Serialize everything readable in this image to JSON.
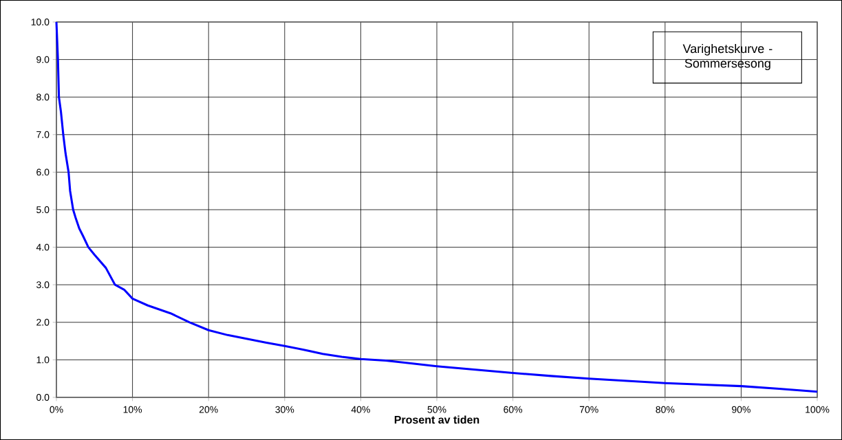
{
  "chart_data": {
    "type": "line",
    "title": "Varighetskurve - Sommersesong",
    "xlabel": "Prosent av tiden",
    "x": [
      0,
      0.2,
      0.33,
      0.6,
      0.9,
      1.2,
      1.6,
      1.8,
      2.2,
      2.5,
      3,
      3.5,
      4.2,
      5,
      6.5,
      7.7,
      8.9,
      10,
      12,
      15,
      17.5,
      20,
      22.5,
      25,
      27.5,
      30,
      32.5,
      35,
      37.5,
      40,
      43.3,
      46,
      50,
      55,
      60,
      65,
      70,
      75,
      80,
      85,
      90,
      95,
      100
    ],
    "series": [
      {
        "color": "#0000ff",
        "line_style": "solid",
        "values": [
          10.0,
          9.0,
          8.0,
          7.6,
          7.0,
          6.5,
          6.0,
          5.5,
          5.0,
          4.8,
          4.5,
          4.3,
          4.0,
          3.8,
          3.45,
          3.0,
          2.87,
          2.63,
          2.45,
          2.24,
          2.0,
          1.79,
          1.66,
          1.56,
          1.46,
          1.37,
          1.27,
          1.16,
          1.08,
          1.02,
          0.98,
          0.92,
          0.83,
          0.74,
          0.65,
          0.57,
          0.5,
          0.44,
          0.38,
          0.34,
          0.3,
          0.23,
          0.15
        ]
      }
    ],
    "xlim": [
      0,
      100
    ],
    "ylim": [
      0,
      10
    ],
    "xticks": [
      {
        "value": 0,
        "label": "0%"
      },
      {
        "value": 10,
        "label": "10%"
      },
      {
        "value": 20,
        "label": "20%"
      },
      {
        "value": 30,
        "label": "30%"
      },
      {
        "value": 40,
        "label": "40%"
      },
      {
        "value": 50,
        "label": "50%"
      },
      {
        "value": 60,
        "label": "60%"
      },
      {
        "value": 70,
        "label": "70%"
      },
      {
        "value": 80,
        "label": "80%"
      },
      {
        "value": 90,
        "label": "90%"
      },
      {
        "value": 100,
        "label": "100%"
      }
    ],
    "yticks": [
      {
        "value": 0,
        "label": "0.0"
      },
      {
        "value": 1,
        "label": "1.0"
      },
      {
        "value": 2,
        "label": "2.0"
      },
      {
        "value": 3,
        "label": "3.0"
      },
      {
        "value": 4,
        "label": "4.0"
      },
      {
        "value": 5,
        "label": "5.0"
      },
      {
        "value": 6,
        "label": "6.0"
      },
      {
        "value": 7,
        "label": "7.0"
      },
      {
        "value": 8,
        "label": "8.0"
      },
      {
        "value": 9,
        "label": "9.0"
      },
      {
        "value": 10,
        "label": "10.0"
      }
    ],
    "grid": true
  }
}
